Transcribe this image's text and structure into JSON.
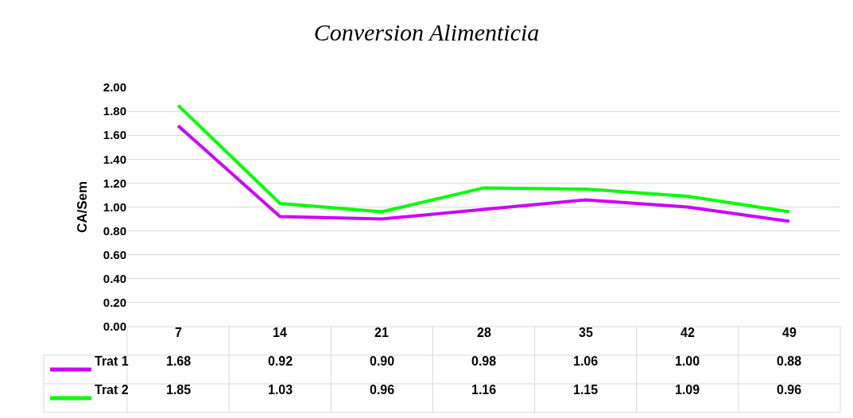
{
  "chart_data": {
    "type": "line",
    "title": "Conversion Alimenticia",
    "ylabel": "CA/Sem",
    "categories": [
      "7",
      "14",
      "21",
      "28",
      "35",
      "42",
      "49"
    ],
    "series": [
      {
        "name": "Trat 1",
        "color": "#cc00ff",
        "values": [
          1.68,
          0.92,
          0.9,
          0.98,
          1.06,
          1.0,
          0.88
        ],
        "value_labels": [
          "1.68",
          "0.92",
          "0.90",
          "0.98",
          "1.06",
          "1.00",
          "0.88"
        ]
      },
      {
        "name": "Trat 2",
        "color": "#00ff00",
        "values": [
          1.85,
          1.03,
          0.96,
          1.16,
          1.15,
          1.09,
          0.96
        ],
        "value_labels": [
          "1.85",
          "1.03",
          "0.96",
          "1.16",
          "1.15",
          "1.09",
          "0.96"
        ]
      }
    ],
    "ylim": [
      0,
      2
    ],
    "yticks": [
      {
        "value": 0,
        "label": "0.00"
      },
      {
        "value": 0.2,
        "label": "0.20"
      },
      {
        "value": 0.4,
        "label": "0.40"
      },
      {
        "value": 0.6,
        "label": "0.60"
      },
      {
        "value": 0.8,
        "label": "0.80"
      },
      {
        "value": 1,
        "label": "1.00"
      },
      {
        "value": 1.2,
        "label": "1.20"
      },
      {
        "value": 1.4,
        "label": "1.40"
      },
      {
        "value": 1.6,
        "label": "1.60"
      },
      {
        "value": 1.8,
        "label": "1.80"
      },
      {
        "value": 2,
        "label": "2.00"
      }
    ],
    "grid": "y",
    "legend": "bottom",
    "marker": "none",
    "line_style": "solid"
  }
}
